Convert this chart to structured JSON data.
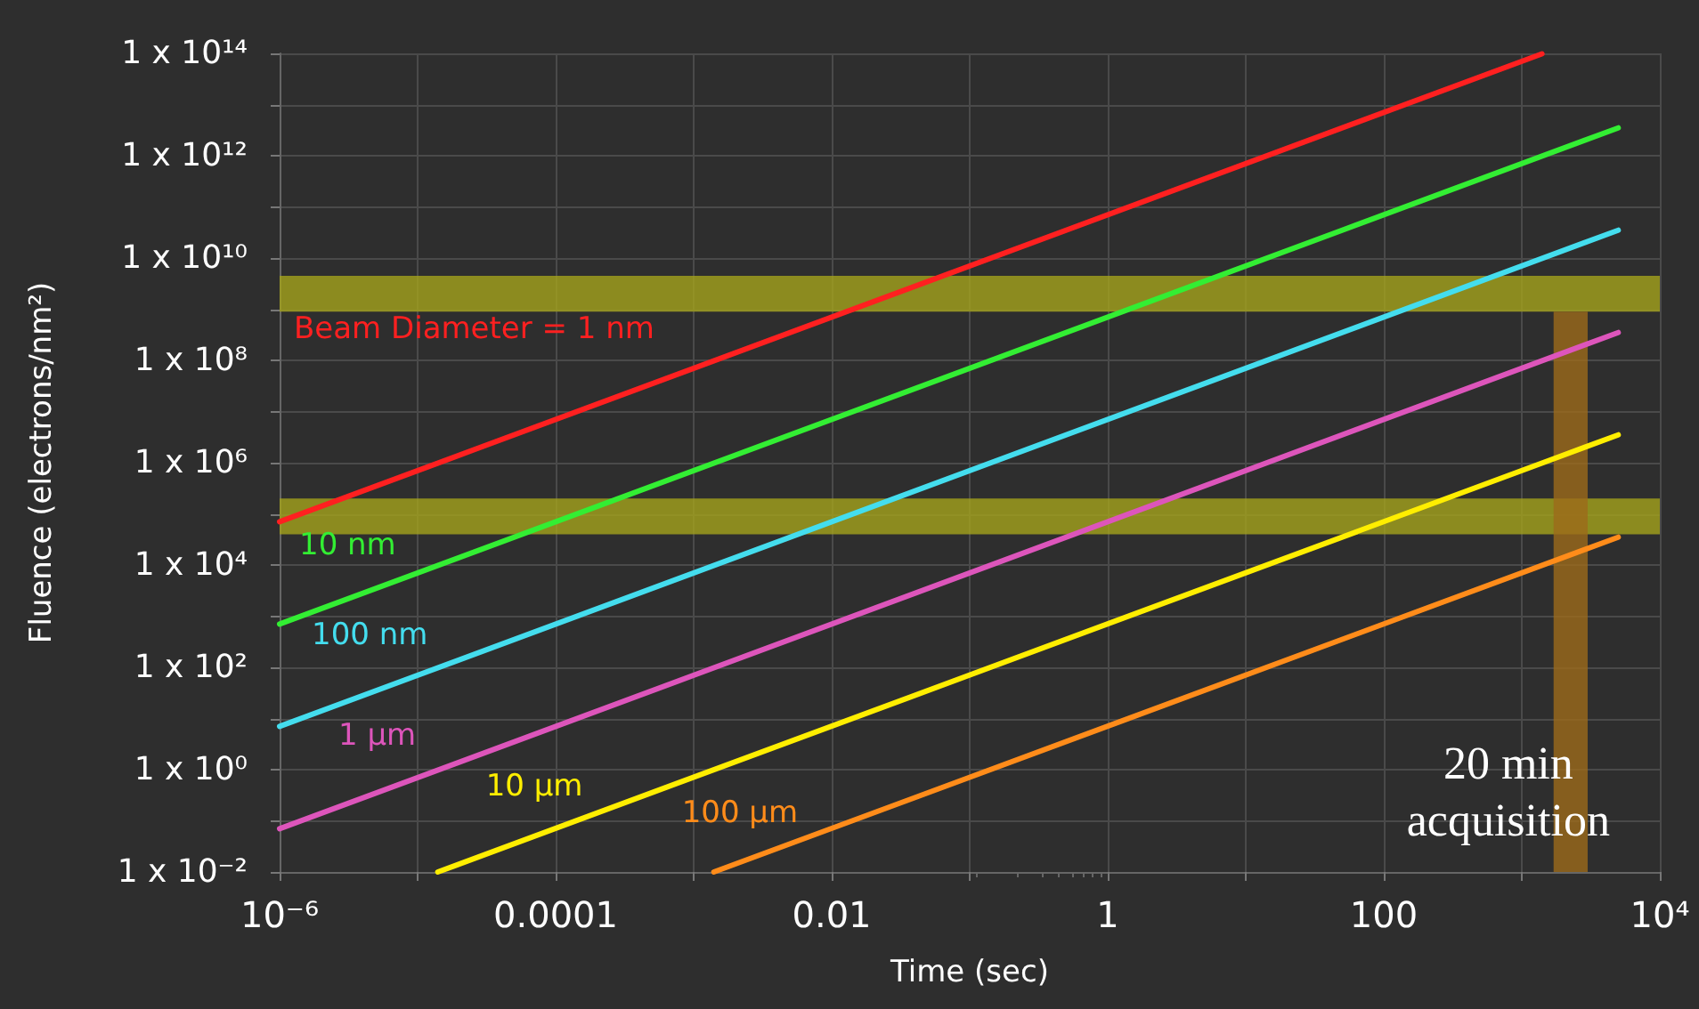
{
  "chart_data": {
    "type": "line",
    "xlabel": "Time (sec)",
    "ylabel": "Fluence (electrons/nm²)",
    "log": "xy",
    "grid": true,
    "legend": false,
    "marker": "none",
    "line_style": "solid",
    "xlim": [
      1e-06,
      10000
    ],
    "ylim": [
      0.01,
      100000000000000.0
    ],
    "xticks": [
      {
        "value": 1e-06,
        "label": "10⁻⁶"
      },
      {
        "value": 1e-05,
        "label": null
      },
      0.0001,
      {
        "value": 0.001,
        "label": null
      },
      0.01,
      {
        "value": 0.1,
        "label": null
      },
      1,
      {
        "value": 10,
        "label": null
      },
      100,
      {
        "value": 1000,
        "label": null
      },
      {
        "value": 10000,
        "label": "10⁴"
      }
    ],
    "yticks": [
      {
        "value": 0.01,
        "label": "1 x 10⁻²"
      },
      {
        "value": 0.1,
        "label": null
      },
      {
        "value": 1,
        "label": "1 x 10⁰"
      },
      {
        "value": 10,
        "label": null
      },
      {
        "value": 100,
        "label": "1 x 10²"
      },
      {
        "value": 1000,
        "label": null
      },
      {
        "value": 10000,
        "label": "1 x 10⁴"
      },
      {
        "value": 100000.0,
        "label": null
      },
      {
        "value": 1000000.0,
        "label": "1 x 10⁶"
      },
      {
        "value": 10000000.0,
        "label": null
      },
      {
        "value": 100000000.0,
        "label": "1 x 10⁸"
      },
      {
        "value": 1000000000.0,
        "label": null
      },
      {
        "value": 10000000000.0,
        "label": "1 x 10¹⁰"
      },
      {
        "value": 100000000000.0,
        "label": null
      },
      {
        "value": 1000000000000.0,
        "label": "1 x 10¹²"
      },
      {
        "value": 10000000000000.0,
        "label": null
      },
      {
        "value": 100000000000000.0,
        "label": "1 x 10¹⁴"
      }
    ],
    "series": [
      {
        "name": "Beam Diameter = 1 nm",
        "color": "#ff2020",
        "x": [
          1e-06,
          1400
        ],
        "values": [
          70000,
          98000000000000.0
        ]
      },
      {
        "name": "10 nm",
        "color": "#33ee33",
        "x": [
          1e-06,
          5000
        ],
        "values": [
          700,
          3500000000000.0
        ]
      },
      {
        "name": "100 nm",
        "color": "#44ddee",
        "x": [
          1e-06,
          5000
        ],
        "values": [
          7,
          35000000000.0
        ]
      },
      {
        "name": "1 µm",
        "color": "#dd55bb",
        "x": [
          1e-06,
          5000
        ],
        "values": [
          0.07,
          350000000.0
        ]
      },
      {
        "name": "10 µm",
        "color": "#ffee00",
        "x": [
          1.4e-05,
          5000
        ],
        "values": [
          0.01,
          3500000.0
        ]
      },
      {
        "name": "100 µm",
        "color": "#ff8c1a",
        "x": [
          0.0014,
          5000
        ],
        "values": [
          0.01,
          35000
        ]
      }
    ],
    "bands": [
      {
        "axis": "y",
        "from": 900000000,
        "to": 4500000000,
        "color": "#a4a21c"
      },
      {
        "axis": "y",
        "from": 40000,
        "to": 200000,
        "color": "#a4a21c"
      },
      {
        "axis": "x",
        "from": 1700,
        "to": 3000,
        "color": "#9c6a1a",
        "label": "20 min\nacquisition"
      }
    ]
  }
}
